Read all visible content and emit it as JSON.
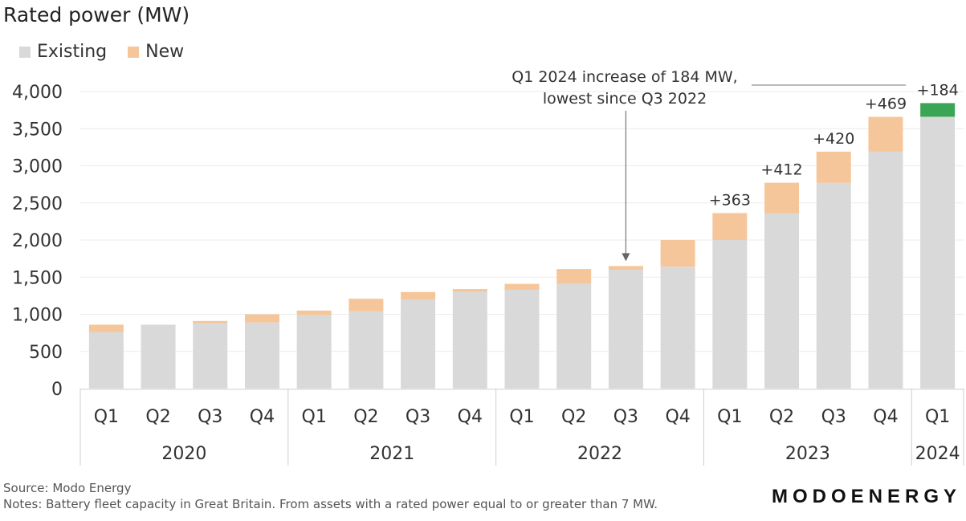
{
  "chart_data": {
    "type": "bar",
    "stacked": true,
    "title": "Rated power (MW)",
    "xlabel": "",
    "ylabel": "",
    "ylim": [
      0,
      4000
    ],
    "yticks": [
      0,
      500,
      1000,
      1500,
      2000,
      2500,
      3000,
      3500,
      4000
    ],
    "ytick_labels": [
      "0",
      "500",
      "1,000",
      "1,500",
      "2,000",
      "2,500",
      "3,000",
      "3,500",
      "4,000"
    ],
    "grid": true,
    "legend_position": "top-left",
    "categories": [
      "Q1",
      "Q2",
      "Q3",
      "Q4",
      "Q1",
      "Q2",
      "Q3",
      "Q4",
      "Q1",
      "Q2",
      "Q3",
      "Q4",
      "Q1",
      "Q2",
      "Q3",
      "Q4",
      "Q1"
    ],
    "years": [
      {
        "label": "2020",
        "count": 4
      },
      {
        "label": "2021",
        "count": 4
      },
      {
        "label": "2022",
        "count": 4
      },
      {
        "label": "2023",
        "count": 4
      },
      {
        "label": "2024",
        "count": 1
      }
    ],
    "series": [
      {
        "name": "Existing",
        "color": "#d9d9d9",
        "values": [
          760,
          860,
          880,
          890,
          990,
          1040,
          1200,
          1300,
          1330,
          1410,
          1600,
          1640,
          2000,
          2360,
          2770,
          3190,
          3660
        ]
      },
      {
        "name": "New",
        "color": "#f5c69a",
        "values": [
          100,
          0,
          30,
          110,
          60,
          170,
          100,
          40,
          80,
          200,
          50,
          360,
          363,
          412,
          420,
          469,
          184
        ]
      }
    ],
    "highlight": {
      "index": 16,
      "color": "#3aa655"
    },
    "bar_labels": [
      {
        "index": 12,
        "text": "+363"
      },
      {
        "index": 13,
        "text": "+412"
      },
      {
        "index": 14,
        "text": "+420"
      },
      {
        "index": 15,
        "text": "+469"
      },
      {
        "index": 16,
        "text": "+184"
      }
    ],
    "annotation": {
      "lines": [
        "Q1 2024 increase of 184 MW,",
        "lowest since Q3 2022"
      ],
      "points_to_index": 10
    }
  },
  "legend": {
    "existing_label": "Existing",
    "new_label": "New",
    "existing_color": "#d9d9d9",
    "new_color": "#f5c69a"
  },
  "footer": {
    "source": "Source: Modo Energy",
    "notes": "Notes: Battery fleet capacity in Great Britain. From assets with a rated power equal to or greater than 7 MW."
  },
  "brand": "MODOENERGY"
}
